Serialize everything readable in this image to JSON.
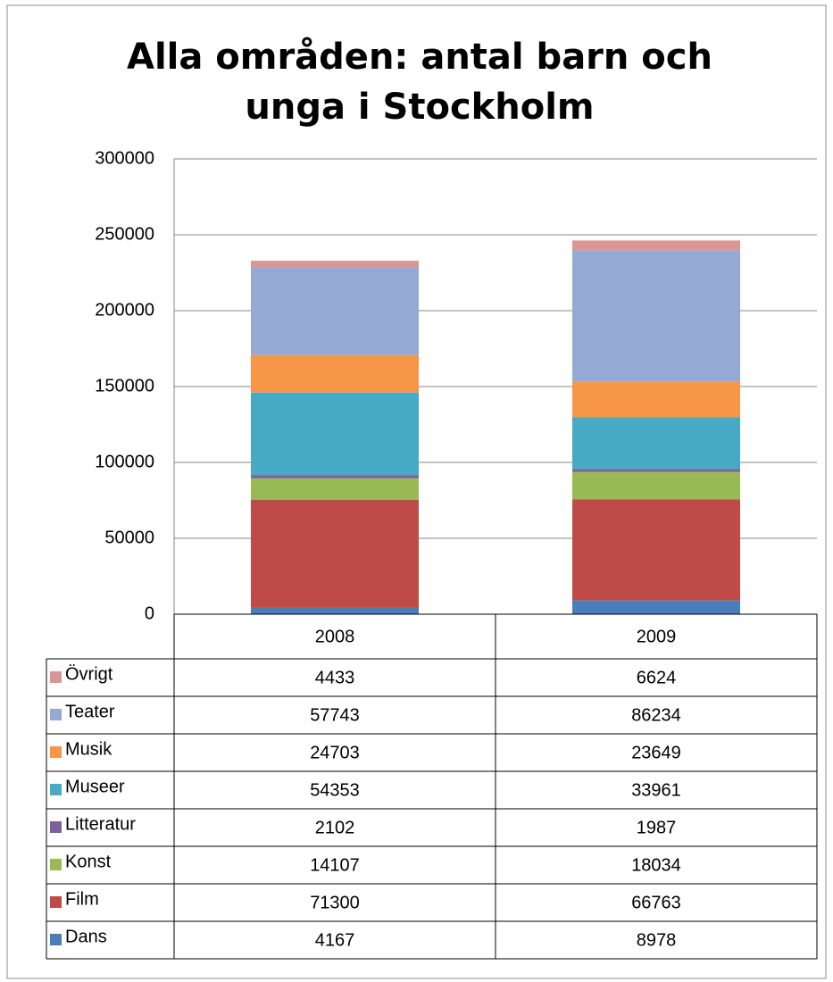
{
  "chart_data": {
    "type": "stacked_bar",
    "title": "Alla områden: antal barn och unga i Stockholm",
    "categories": [
      "2008",
      "2009"
    ],
    "series": [
      {
        "name": "Dans",
        "color": "#4a7ebb",
        "values": [
          4167,
          8978
        ]
      },
      {
        "name": "Film",
        "color": "#be4b48",
        "values": [
          71300,
          66763
        ]
      },
      {
        "name": "Konst",
        "color": "#98b954",
        "values": [
          14107,
          18034
        ]
      },
      {
        "name": "Litteratur",
        "color": "#7d60a0",
        "values": [
          2102,
          1987
        ]
      },
      {
        "name": "Museer",
        "color": "#46aac5",
        "values": [
          54353,
          33961
        ]
      },
      {
        "name": "Musik",
        "color": "#f79646",
        "values": [
          24703,
          23649
        ]
      },
      {
        "name": "Teater",
        "color": "#95a9d5",
        "values": [
          57743,
          86234
        ]
      },
      {
        "name": "Övrigt",
        "color": "#d99694",
        "values": [
          4433,
          6624
        ]
      }
    ],
    "ylim": [
      0,
      300000
    ],
    "yticks": [
      0,
      50000,
      100000,
      150000,
      200000,
      250000,
      300000
    ],
    "grid": true,
    "data_table": true
  }
}
